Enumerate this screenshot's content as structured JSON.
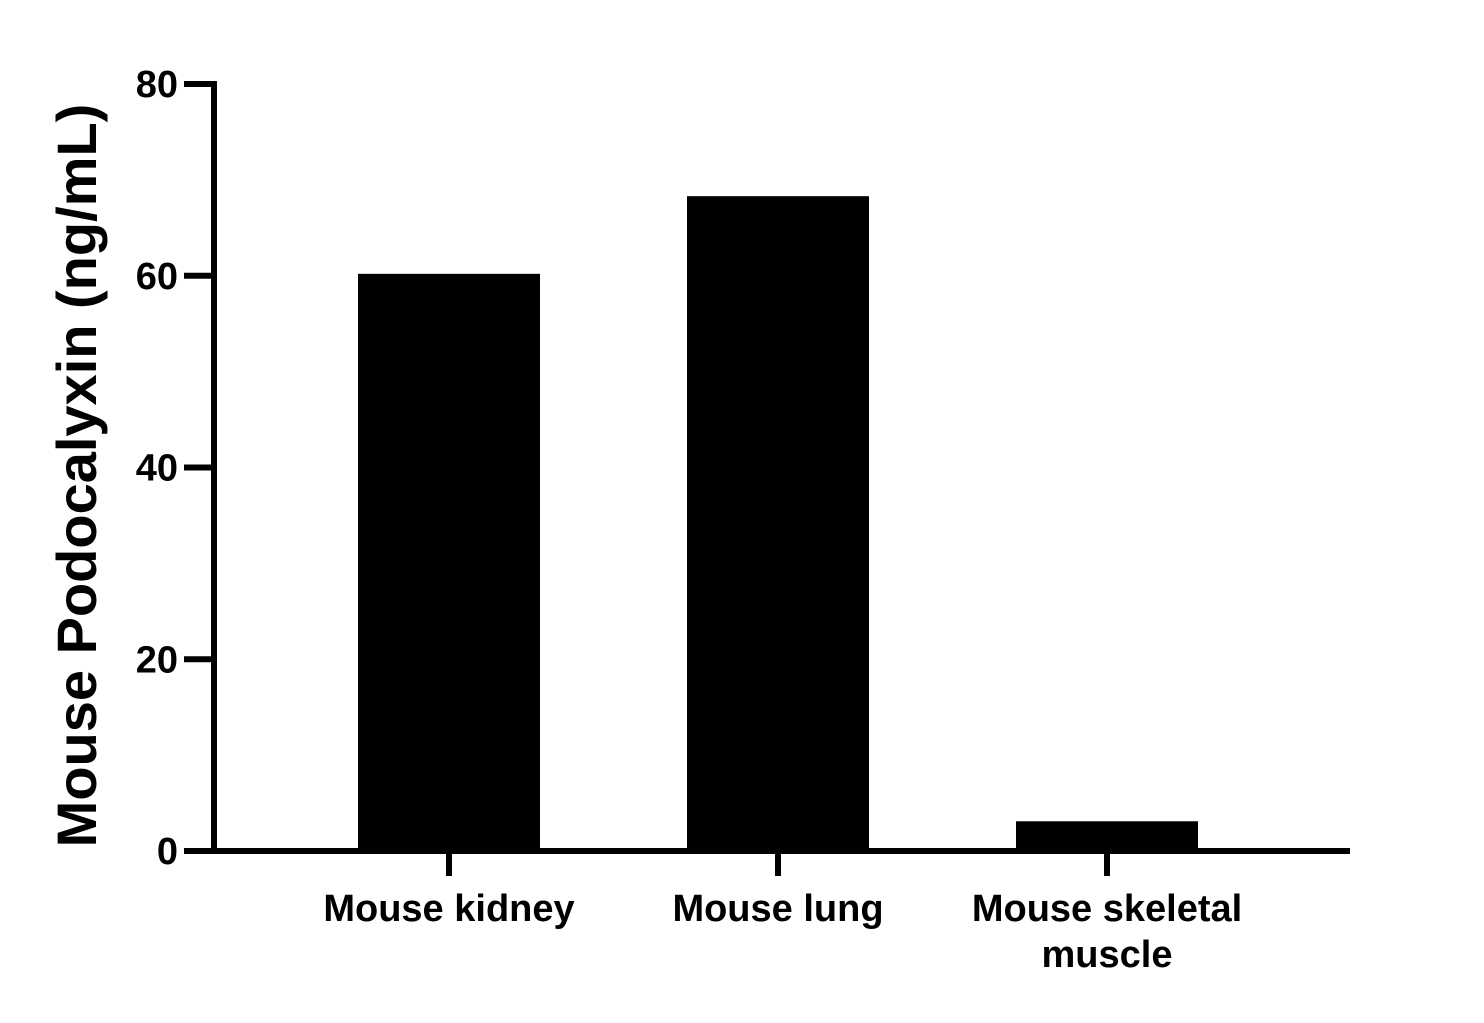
{
  "chart_data": {
    "type": "bar",
    "categories": [
      "Mouse kidney",
      "Mouse lung",
      "Mouse skeletal muscle"
    ],
    "category_label_lines": [
      [
        "Mouse kidney"
      ],
      [
        "Mouse lung"
      ],
      [
        "Mouse skeletal",
        "muscle"
      ]
    ],
    "values": [
      60.2,
      68.3,
      3.1
    ],
    "xlabel": "",
    "ylabel": "Mouse Podocalyxin (ng/mL)",
    "ylim": [
      0,
      80
    ],
    "yticks": [
      0,
      20,
      40,
      60,
      80
    ],
    "grid": false,
    "legend": "none",
    "bar_color": "#000000",
    "axis_color": "#000000"
  }
}
